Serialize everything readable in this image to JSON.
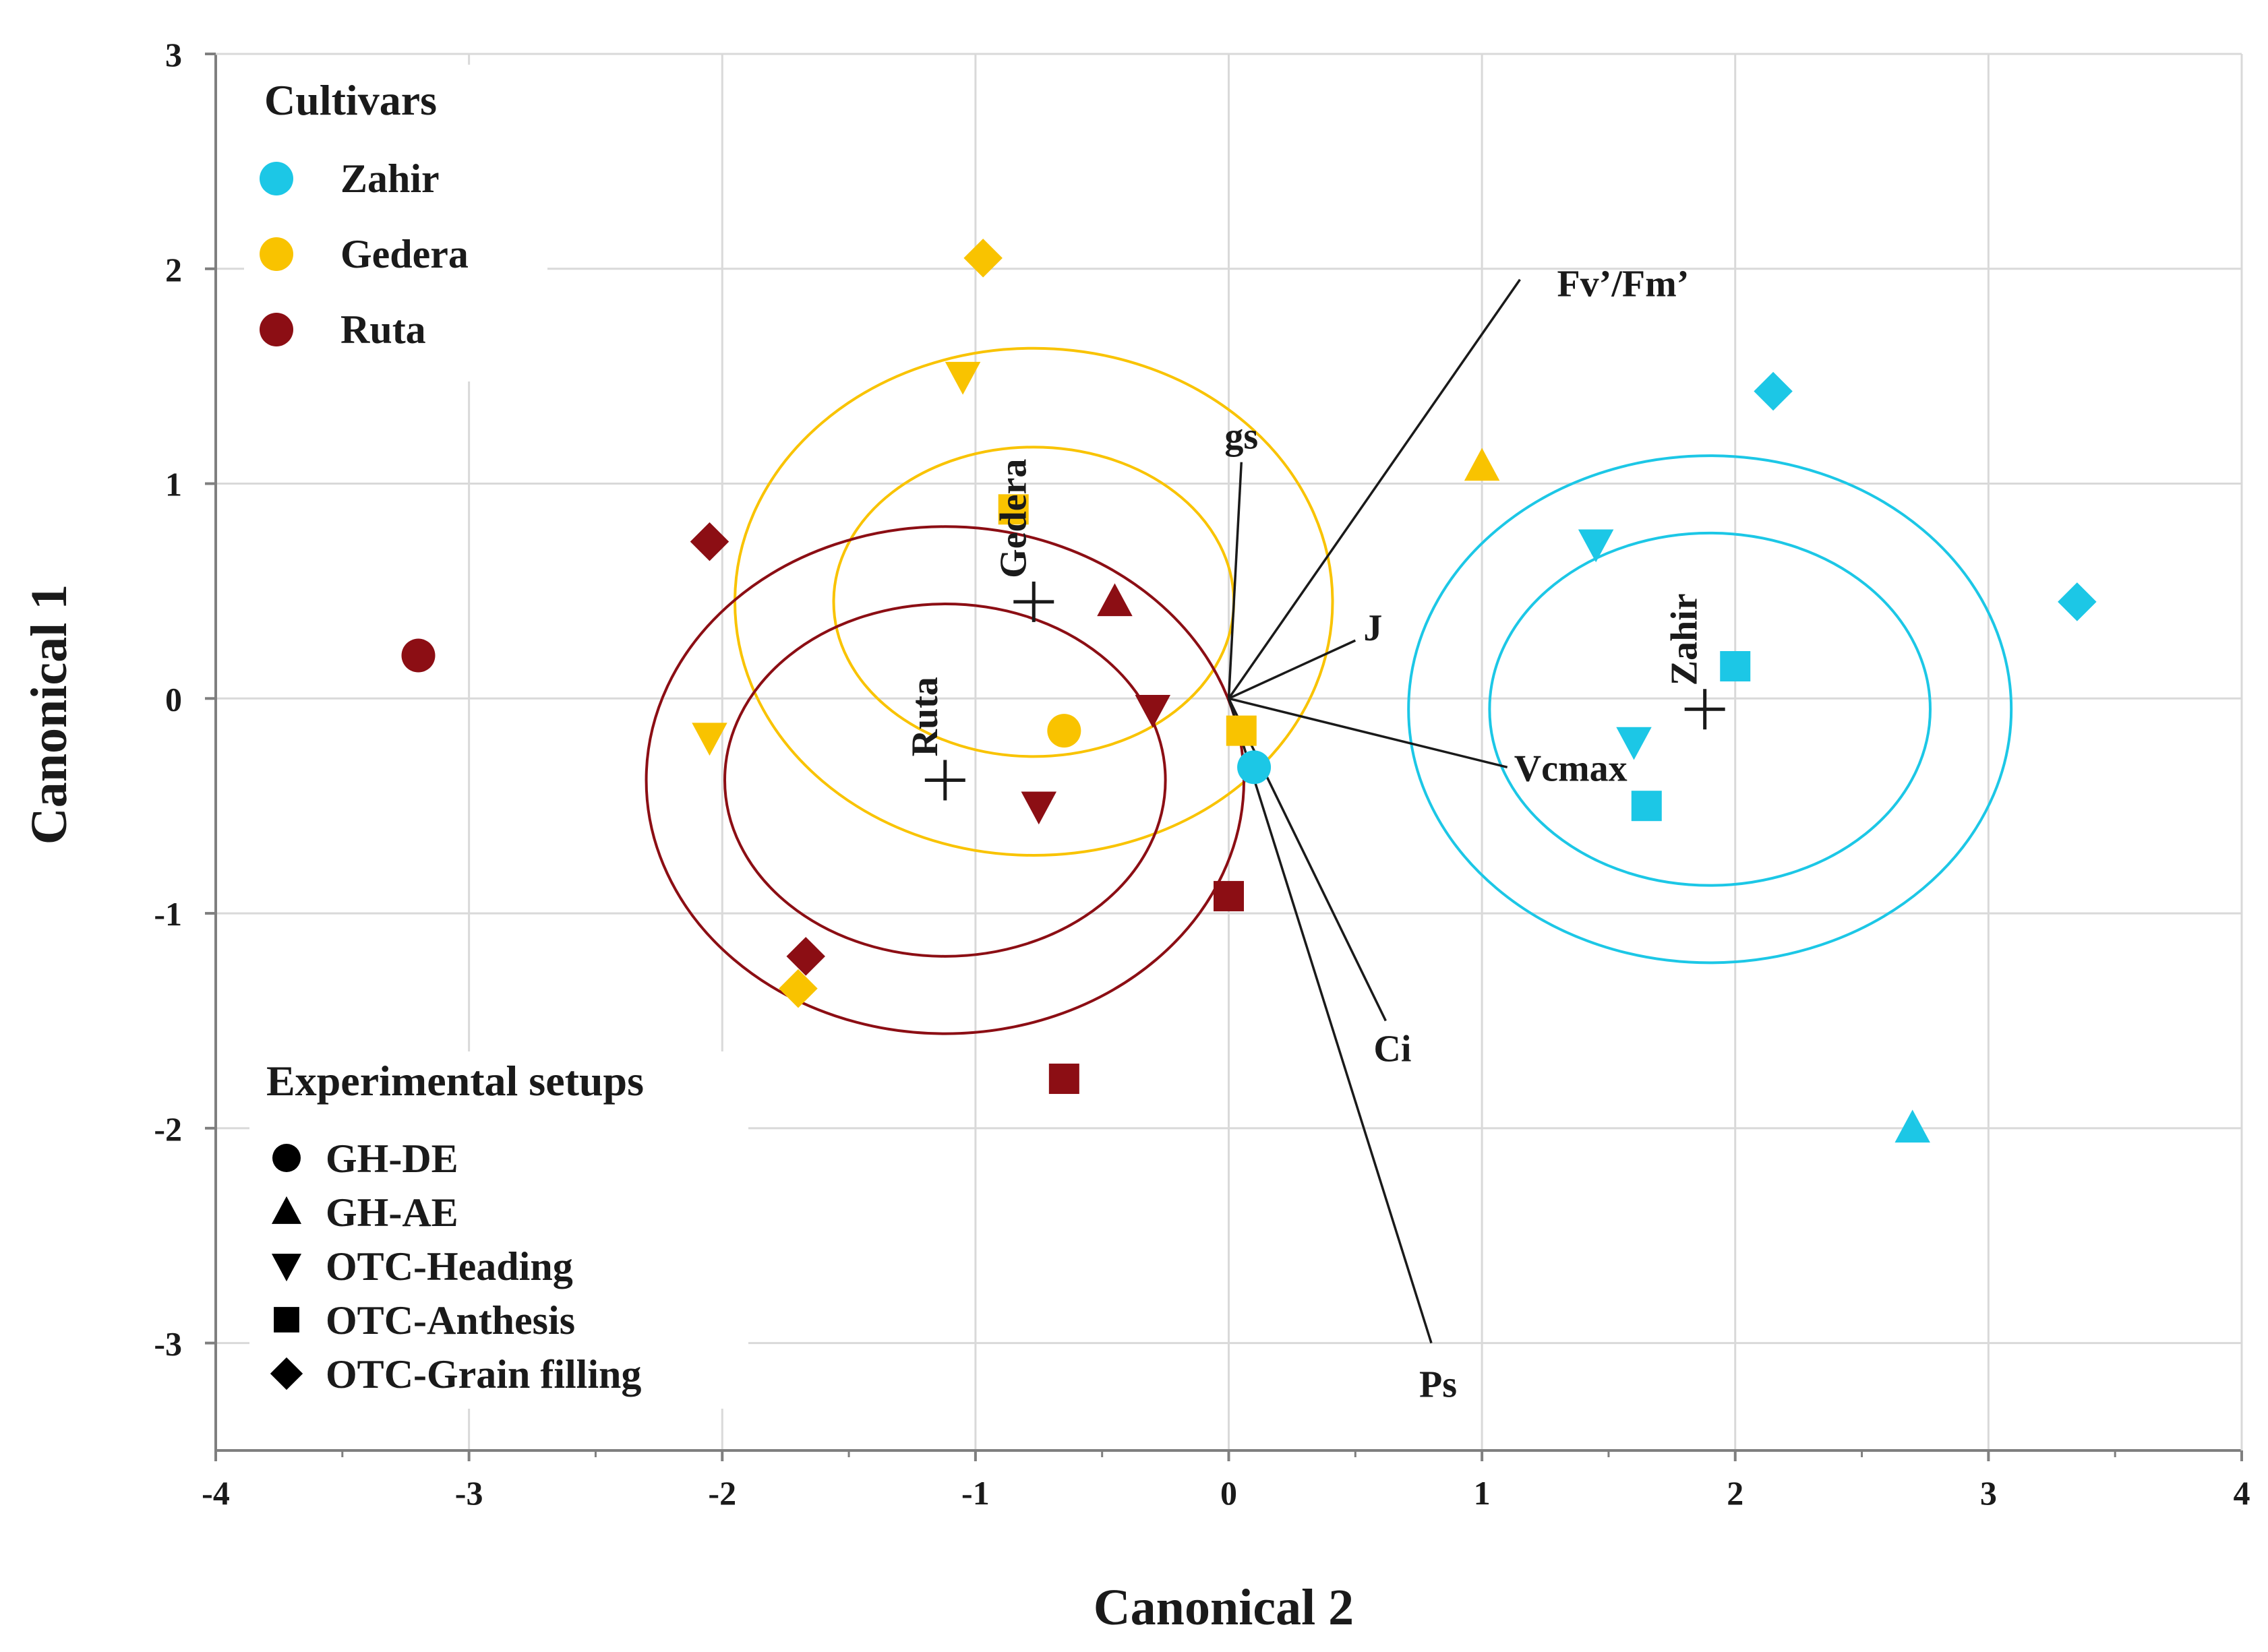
{
  "chart_data": {
    "type": "scatter",
    "title": "",
    "xlabel": "Canonical 2",
    "ylabel": "Canonical 1",
    "xlim": [
      -4,
      4
    ],
    "ylim": [
      -3.5,
      3
    ],
    "xticks": [
      "-4",
      "-3",
      "-2",
      "-1",
      "0",
      "1",
      "2",
      "3",
      "4"
    ],
    "xtick_values": [
      -4,
      -3,
      -2,
      -1,
      0,
      1,
      2,
      3,
      4
    ],
    "yticks": [
      "3",
      "2",
      "1",
      "0",
      "-1",
      "-2",
      "-3"
    ],
    "ytick_values": [
      3,
      2,
      1,
      0,
      -1,
      -2,
      -3
    ],
    "grid": true,
    "cultivars_title": "Cultivars",
    "setups_title": "Experimental setups",
    "colors": {
      "Zahir": "#1cc7e6",
      "Gedera": "#f9c300",
      "Ruta": "#8c0e14"
    },
    "cultivars": [
      {
        "name": "Zahir",
        "color": "#1cc7e6"
      },
      {
        "name": "Gedera",
        "color": "#f9c300"
      },
      {
        "name": "Ruta",
        "color": "#8c0e14"
      }
    ],
    "setups": [
      {
        "name": "GH-DE",
        "marker": "circle"
      },
      {
        "name": "GH-AE",
        "marker": "triangle-up"
      },
      {
        "name": "OTC-Heading",
        "marker": "triangle-down"
      },
      {
        "name": "OTC-Anthesis",
        "marker": "square"
      },
      {
        "name": "OTC-Grain filling",
        "marker": "diamond"
      }
    ],
    "points": [
      {
        "cultivar": "Zahir",
        "setup": "GH-DE",
        "x": 0.1,
        "y": -0.32
      },
      {
        "cultivar": "Zahir",
        "setup": "GH-AE",
        "x": 2.7,
        "y": -2.0
      },
      {
        "cultivar": "Zahir",
        "setup": "OTC-Heading",
        "x": 1.45,
        "y": 0.72
      },
      {
        "cultivar": "Zahir",
        "setup": "OTC-Heading",
        "x": 1.6,
        "y": -0.2
      },
      {
        "cultivar": "Zahir",
        "setup": "OTC-Anthesis",
        "x": 2.0,
        "y": 0.15
      },
      {
        "cultivar": "Zahir",
        "setup": "OTC-Anthesis",
        "x": 1.65,
        "y": -0.5
      },
      {
        "cultivar": "Zahir",
        "setup": "OTC-Grain filling",
        "x": 2.15,
        "y": 1.43
      },
      {
        "cultivar": "Zahir",
        "setup": "OTC-Grain filling",
        "x": 3.35,
        "y": 0.45
      },
      {
        "cultivar": "Gedera",
        "setup": "GH-DE",
        "x": -0.65,
        "y": -0.15
      },
      {
        "cultivar": "Gedera",
        "setup": "GH-AE",
        "x": 1.0,
        "y": 1.08
      },
      {
        "cultivar": "Gedera",
        "setup": "OTC-Heading",
        "x": -1.05,
        "y": 1.5
      },
      {
        "cultivar": "Gedera",
        "setup": "OTC-Heading",
        "x": -2.05,
        "y": -0.18
      },
      {
        "cultivar": "Gedera",
        "setup": "OTC-Anthesis",
        "x": 0.05,
        "y": -0.15
      },
      {
        "cultivar": "Gedera",
        "setup": "OTC-Anthesis",
        "x": -0.85,
        "y": 0.88
      },
      {
        "cultivar": "Gedera",
        "setup": "OTC-Grain filling",
        "x": -0.97,
        "y": 2.05
      },
      {
        "cultivar": "Gedera",
        "setup": "OTC-Grain filling",
        "x": -1.7,
        "y": -1.35
      },
      {
        "cultivar": "Ruta",
        "setup": "GH-DE",
        "x": -3.2,
        "y": 0.2
      },
      {
        "cultivar": "Ruta",
        "setup": "GH-AE",
        "x": -0.45,
        "y": 0.45
      },
      {
        "cultivar": "Ruta",
        "setup": "OTC-Heading",
        "x": -0.75,
        "y": -0.5
      },
      {
        "cultivar": "Ruta",
        "setup": "OTC-Heading",
        "x": -0.3,
        "y": -0.05
      },
      {
        "cultivar": "Ruta",
        "setup": "OTC-Anthesis",
        "x": 0.0,
        "y": -0.92
      },
      {
        "cultivar": "Ruta",
        "setup": "OTC-Anthesis",
        "x": -0.65,
        "y": -1.77
      },
      {
        "cultivar": "Ruta",
        "setup": "OTC-Grain filling",
        "x": -2.05,
        "y": 0.73
      },
      {
        "cultivar": "Ruta",
        "setup": "OTC-Grain filling",
        "x": -1.67,
        "y": -1.2
      }
    ],
    "centroids": [
      {
        "name": "Zahir",
        "x": 1.88,
        "y": -0.05
      },
      {
        "name": "Gedera",
        "x": -0.77,
        "y": 0.45
      },
      {
        "name": "Ruta",
        "x": -1.12,
        "y": -0.38
      }
    ],
    "confidence_ellipses": [
      {
        "cultivar": "Zahir",
        "cx": 1.9,
        "cy": -0.05,
        "inner_rx": 0.87,
        "inner_ry": 0.82,
        "outer_rx": 1.19,
        "outer_ry": 1.18
      },
      {
        "cultivar": "Gedera",
        "cx": -0.77,
        "cy": 0.45,
        "inner_rx": 0.79,
        "inner_ry": 0.72,
        "outer_rx": 1.18,
        "outer_ry": 1.18
      },
      {
        "cultivar": "Ruta",
        "cx": -1.12,
        "cy": -0.38,
        "inner_rx": 0.87,
        "inner_ry": 0.82,
        "outer_rx": 1.18,
        "outer_ry": 1.18
      }
    ],
    "vectors": [
      {
        "name": "Fv’/Fm’",
        "x": 1.15,
        "y": 1.95
      },
      {
        "name": "gs",
        "x": 0.05,
        "y": 1.1
      },
      {
        "name": "J",
        "x": 0.5,
        "y": 0.27
      },
      {
        "name": "Vcmax",
        "x": 1.1,
        "y": -0.32
      },
      {
        "name": "Ci",
        "x": 0.62,
        "y": -1.5
      },
      {
        "name": "Ps",
        "x": 0.8,
        "y": -3.0
      }
    ]
  }
}
